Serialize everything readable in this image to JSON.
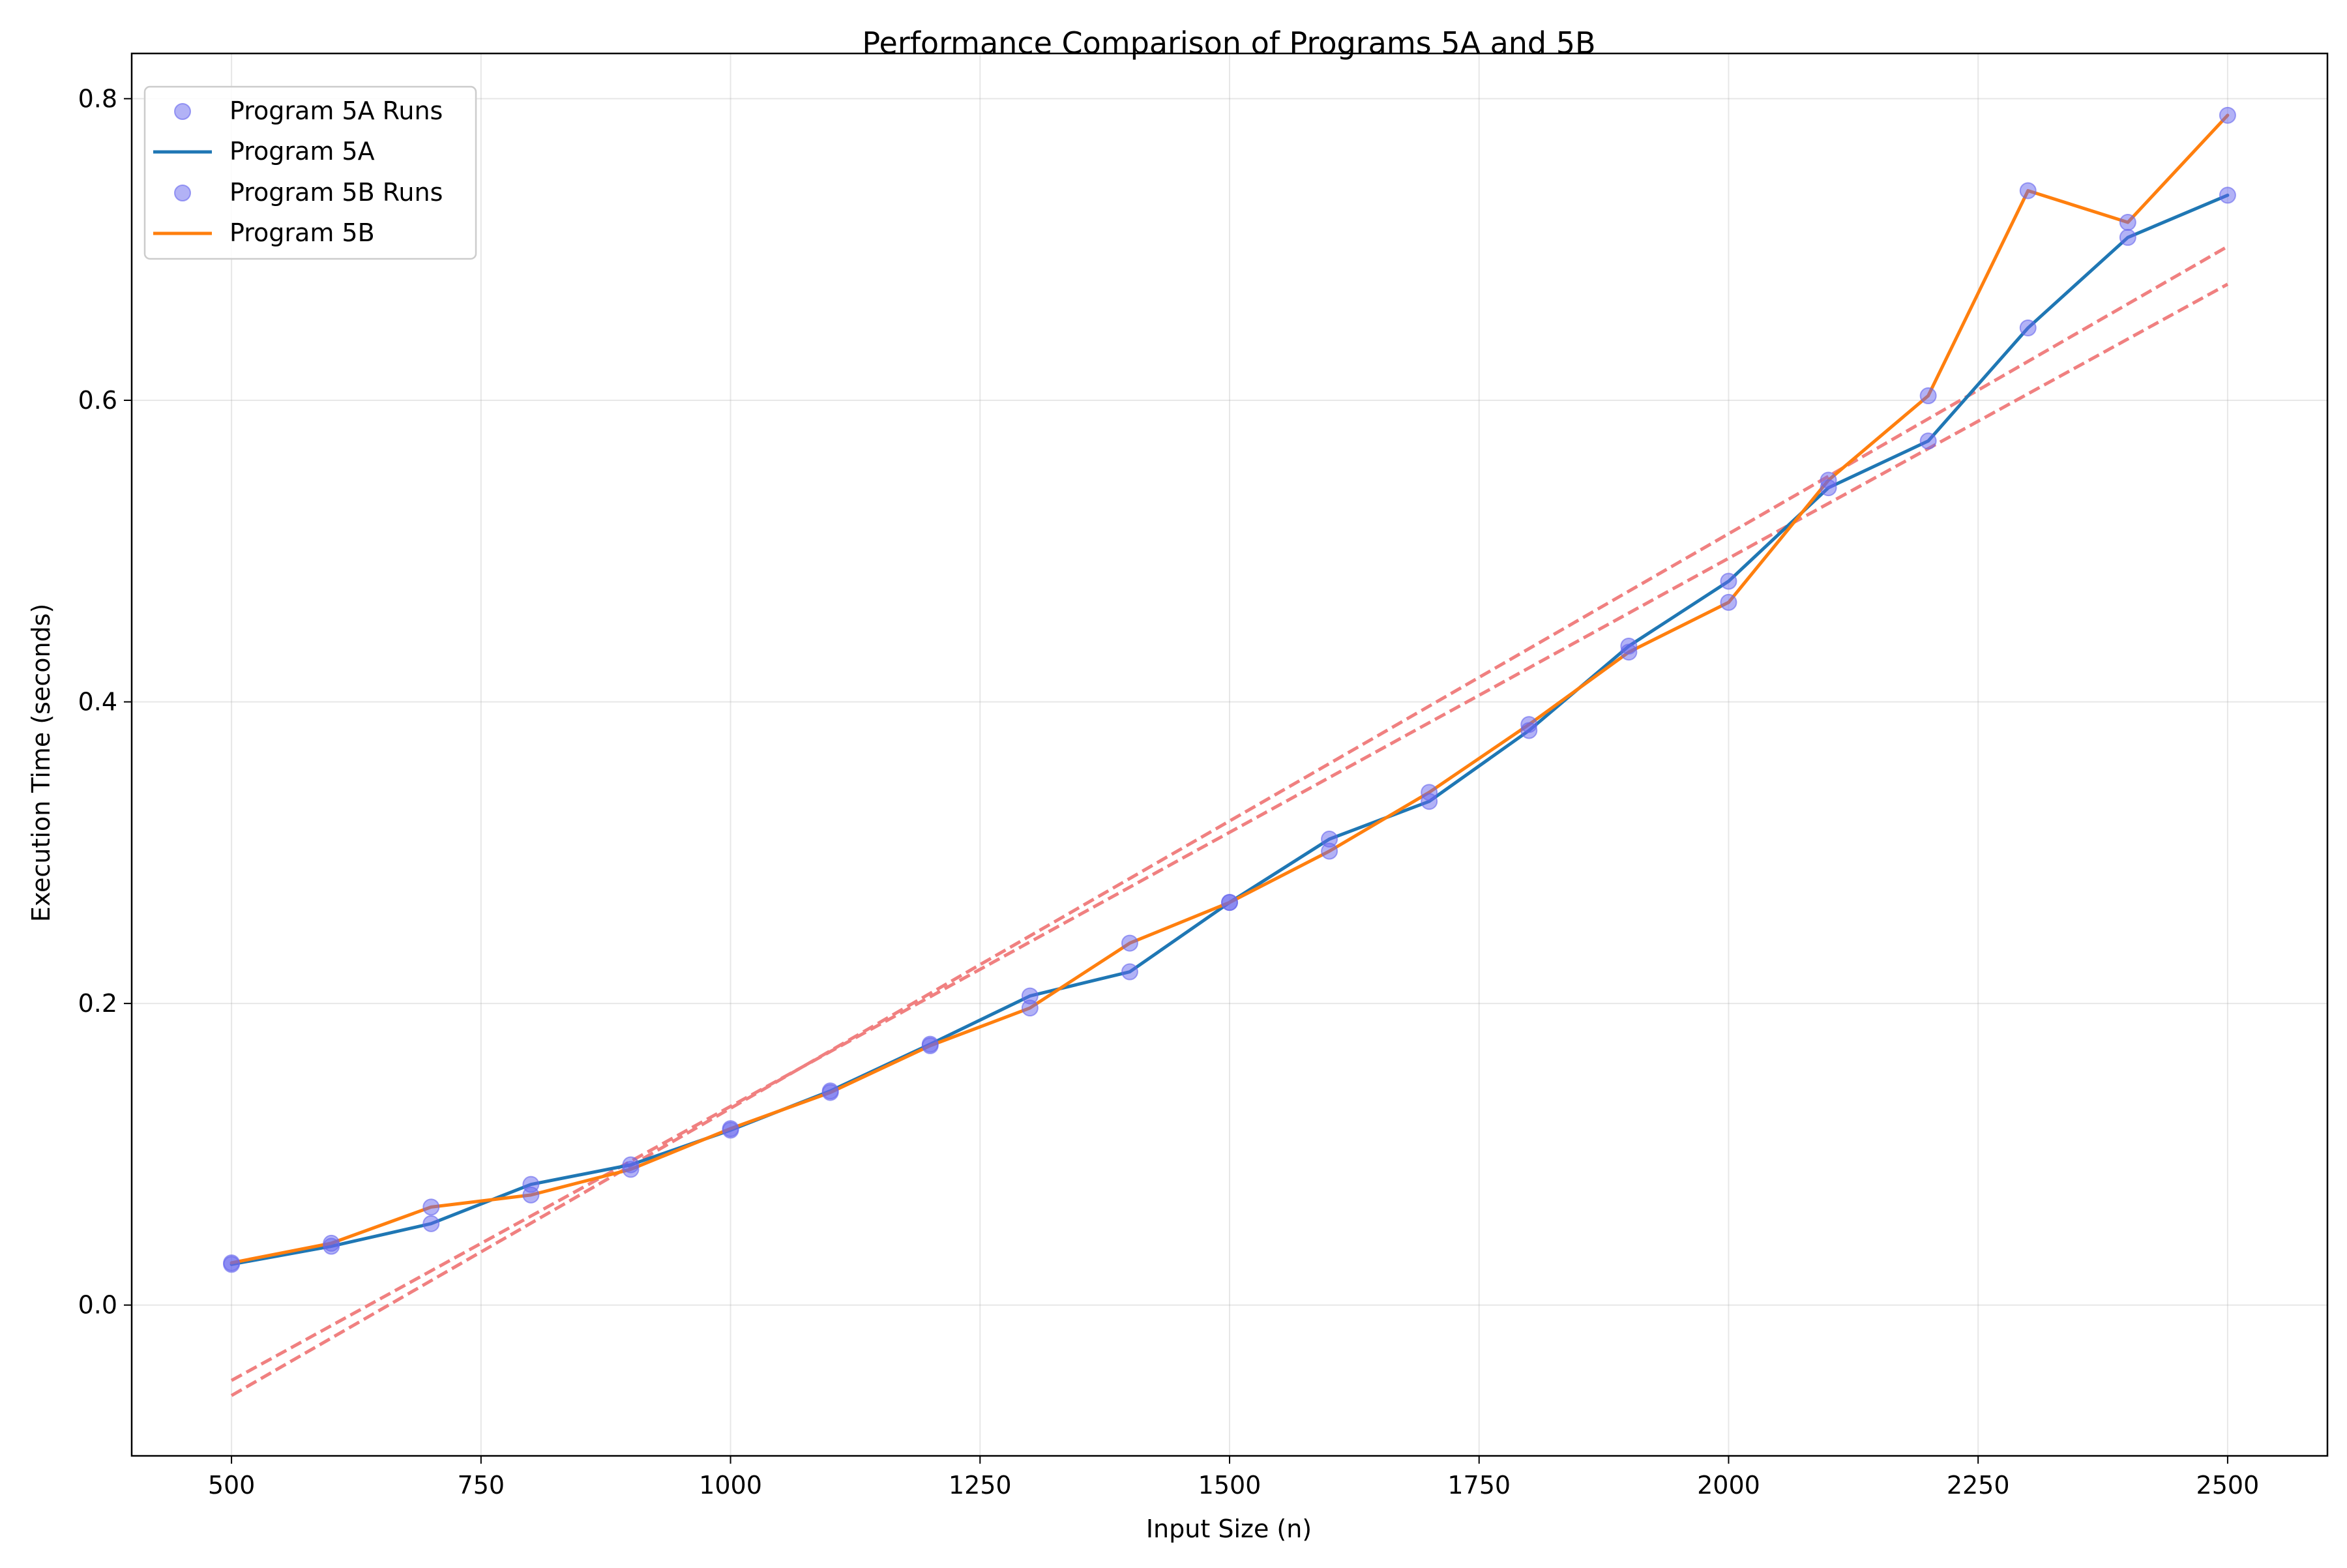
{
  "chart_data": {
    "type": "line",
    "title": "Performance Comparison of Programs 5A and 5B",
    "xlabel": "Input Size (n)",
    "ylabel": "Execution Time (seconds)",
    "xlim": [
      400,
      2600
    ],
    "ylim": [
      -0.1,
      0.83
    ],
    "xticks": [
      500,
      750,
      1000,
      1250,
      1500,
      1750,
      2000,
      2250,
      2500
    ],
    "yticks": [
      0.0,
      0.2,
      0.4,
      0.6,
      0.8
    ],
    "xtick_labels": [
      "500",
      "750",
      "1000",
      "1250",
      "1500",
      "1750",
      "2000",
      "2250",
      "2500"
    ],
    "ytick_labels": [
      "0.0",
      "0.2",
      "0.4",
      "0.6",
      "0.8"
    ],
    "grid": true,
    "legend_position": "top-left",
    "x": [
      500,
      600,
      700,
      800,
      900,
      1000,
      1100,
      1200,
      1300,
      1400,
      1500,
      1600,
      1700,
      1800,
      1900,
      2000,
      2100,
      2200,
      2300,
      2400,
      2500
    ],
    "series": [
      {
        "name": "Program 5A Runs",
        "kind": "scatter",
        "color": "#6666ee",
        "values": [
          0.027,
          0.039,
          0.054,
          0.08,
          0.093,
          0.116,
          0.142,
          0.173,
          0.205,
          0.221,
          0.267,
          0.309,
          0.334,
          0.381,
          0.437,
          0.48,
          0.542,
          0.573,
          0.648,
          0.708,
          0.736
        ]
      },
      {
        "name": "Program 5A",
        "kind": "line",
        "color": "#1f77b4",
        "values": [
          0.027,
          0.039,
          0.054,
          0.08,
          0.093,
          0.116,
          0.142,
          0.173,
          0.205,
          0.221,
          0.267,
          0.309,
          0.334,
          0.381,
          0.437,
          0.48,
          0.542,
          0.573,
          0.648,
          0.708,
          0.736
        ]
      },
      {
        "name": "Program 5B Runs",
        "kind": "scatter",
        "color": "#6666ee",
        "values": [
          0.028,
          0.041,
          0.065,
          0.073,
          0.09,
          0.117,
          0.141,
          0.172,
          0.197,
          0.24,
          0.267,
          0.301,
          0.34,
          0.385,
          0.433,
          0.466,
          0.547,
          0.603,
          0.739,
          0.718,
          0.789
        ]
      },
      {
        "name": "Program 5B",
        "kind": "line",
        "color": "#ff7f0e",
        "values": [
          0.028,
          0.041,
          0.065,
          0.073,
          0.09,
          0.117,
          0.141,
          0.172,
          0.197,
          0.24,
          0.267,
          0.301,
          0.34,
          0.385,
          0.433,
          0.466,
          0.547,
          0.603,
          0.739,
          0.718,
          0.789
        ]
      }
    ],
    "trend_lines": [
      {
        "color": "#f08080",
        "style": "dashed",
        "x": [
          500,
          2500
        ],
        "y": [
          -0.05,
          0.677
        ]
      },
      {
        "color": "#f08080",
        "style": "dashed",
        "x": [
          500,
          2500
        ],
        "y": [
          -0.06,
          0.702
        ]
      }
    ]
  }
}
